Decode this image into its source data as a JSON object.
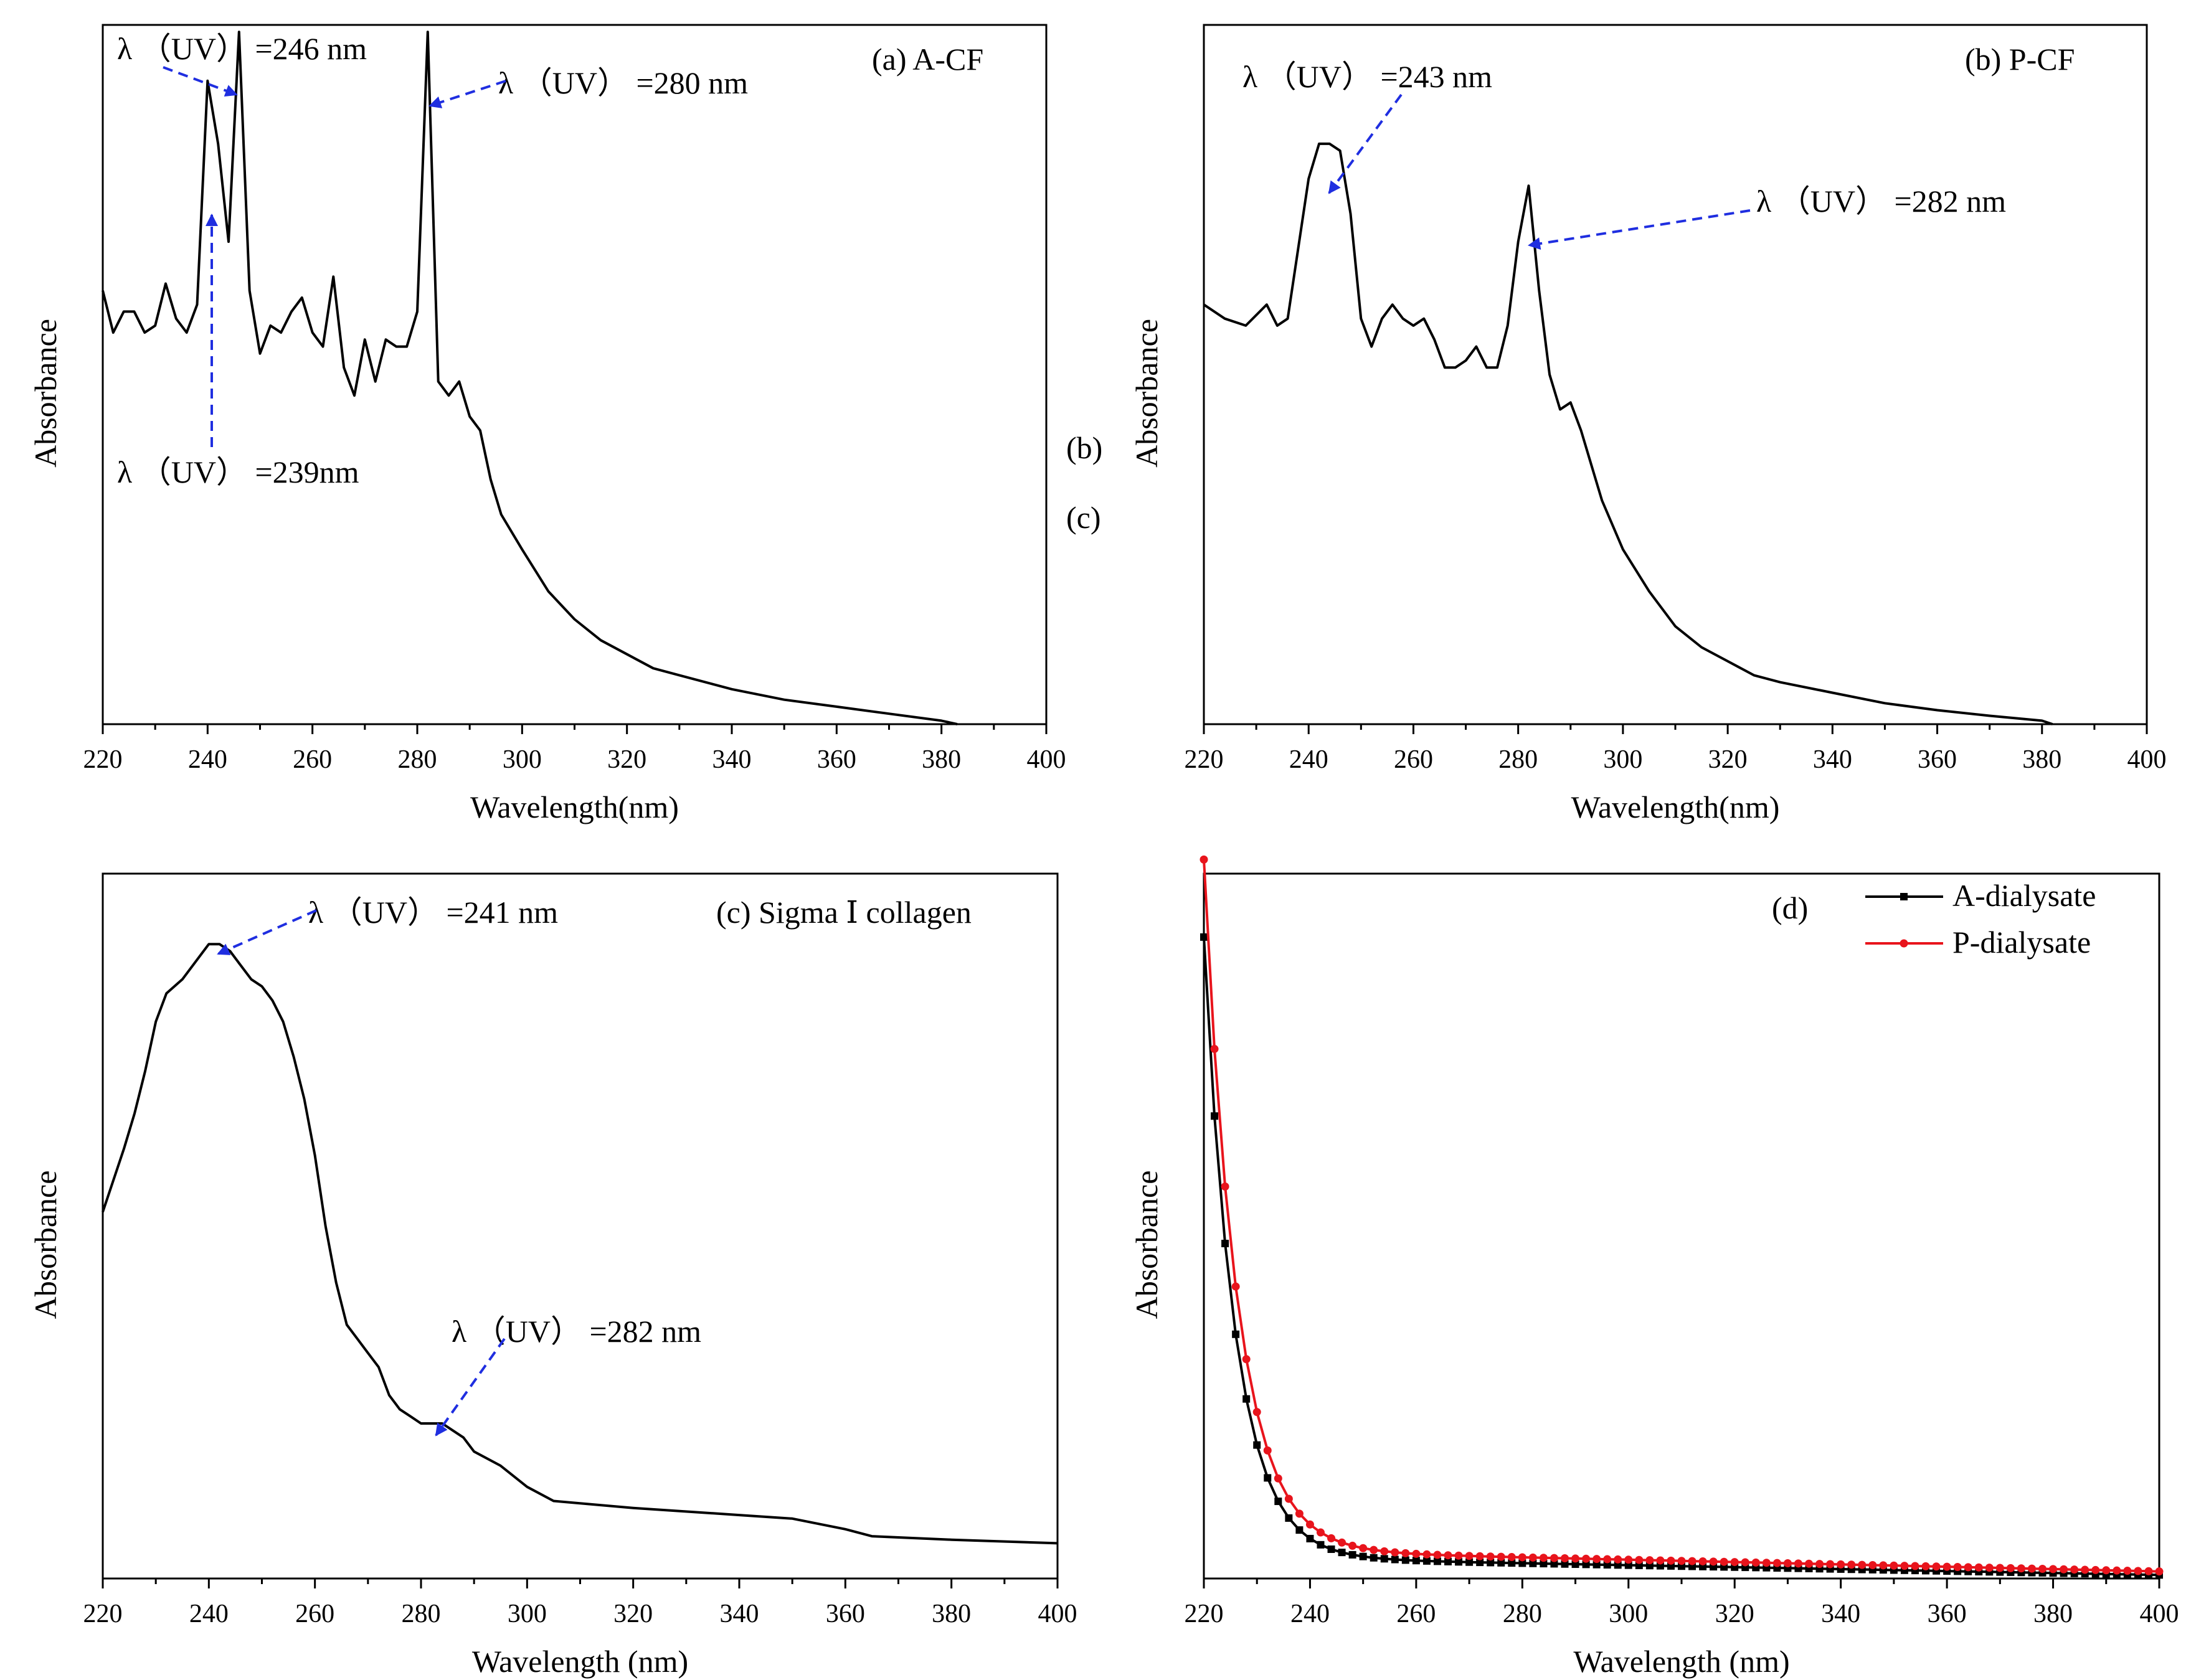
{
  "figure_stray_labels": [
    "(b)",
    "(c)"
  ],
  "chart_data": [
    {
      "type": "line",
      "panel": "a",
      "panel_label": "(a)   A-CF",
      "xlabel": "Wavelength(nm)",
      "ylabel": "Absorbance",
      "xlim": [
        220,
        400
      ],
      "ylim": [
        0,
        1
      ],
      "xticks": [
        220,
        240,
        260,
        280,
        300,
        320,
        340,
        360,
        380,
        400
      ],
      "grid": false,
      "series": [
        {
          "name": "A-CF",
          "color": "#000000",
          "x": [
            220,
            222,
            224,
            226,
            228,
            230,
            232,
            234,
            236,
            238,
            240,
            242,
            244,
            246,
            248,
            250,
            252,
            254,
            256,
            258,
            260,
            262,
            264,
            266,
            268,
            270,
            272,
            274,
            276,
            278,
            280,
            282,
            284,
            286,
            288,
            290,
            292,
            294,
            296,
            300,
            305,
            310,
            315,
            320,
            325,
            330,
            340,
            350,
            360,
            370,
            380,
            383
          ],
          "values": [
            0.62,
            0.56,
            0.59,
            0.59,
            0.56,
            0.57,
            0.63,
            0.58,
            0.56,
            0.6,
            0.92,
            0.83,
            0.69,
            0.99,
            0.62,
            0.53,
            0.57,
            0.56,
            0.59,
            0.61,
            0.56,
            0.54,
            0.64,
            0.51,
            0.47,
            0.55,
            0.49,
            0.55,
            0.54,
            0.54,
            0.59,
            0.99,
            0.49,
            0.47,
            0.49,
            0.44,
            0.42,
            0.35,
            0.3,
            0.25,
            0.19,
            0.15,
            0.12,
            0.1,
            0.08,
            0.07,
            0.05,
            0.035,
            0.025,
            0.015,
            0.005,
            0.0
          ]
        }
      ],
      "annotations": [
        {
          "text": "λ （UV） =246 nm",
          "x": 246
        },
        {
          "text": "λ （UV） =280 nm",
          "x": 282
        },
        {
          "text": "λ （UV） =239nm",
          "x": 241
        }
      ]
    },
    {
      "type": "line",
      "panel": "b",
      "panel_label": "(b)   P-CF",
      "xlabel": "Wavelength(nm)",
      "ylabel": "Absorbance",
      "xlim": [
        220,
        400
      ],
      "ylim": [
        0,
        1
      ],
      "xticks": [
        220,
        240,
        260,
        280,
        300,
        320,
        340,
        360,
        380,
        400
      ],
      "grid": false,
      "series": [
        {
          "name": "P-CF",
          "color": "#000000",
          "x": [
            220,
            224,
            228,
            232,
            234,
            236,
            238,
            240,
            242,
            244,
            246,
            248,
            250,
            252,
            254,
            256,
            258,
            260,
            262,
            264,
            266,
            268,
            270,
            272,
            274,
            276,
            278,
            280,
            282,
            284,
            286,
            288,
            290,
            292,
            294,
            296,
            300,
            305,
            310,
            315,
            320,
            325,
            330,
            340,
            350,
            360,
            370,
            380,
            382
          ],
          "values": [
            0.6,
            0.58,
            0.57,
            0.6,
            0.57,
            0.58,
            0.68,
            0.78,
            0.83,
            0.83,
            0.82,
            0.73,
            0.58,
            0.54,
            0.58,
            0.6,
            0.58,
            0.57,
            0.58,
            0.55,
            0.51,
            0.51,
            0.52,
            0.54,
            0.51,
            0.51,
            0.57,
            0.69,
            0.77,
            0.62,
            0.5,
            0.45,
            0.46,
            0.42,
            0.37,
            0.32,
            0.25,
            0.19,
            0.14,
            0.11,
            0.09,
            0.07,
            0.06,
            0.045,
            0.03,
            0.02,
            0.012,
            0.005,
            0.0
          ]
        }
      ],
      "annotations": [
        {
          "text": "λ （UV） =243 nm",
          "x": 243
        },
        {
          "text": "λ （UV） =282 nm",
          "x": 282
        }
      ]
    },
    {
      "type": "line",
      "panel": "c",
      "panel_label": "(c)   Sigma Ⅰ collagen",
      "xlabel": "Wavelength (nm)",
      "ylabel": "Absorbance",
      "xlim": [
        220,
        400
      ],
      "ylim": [
        0,
        1
      ],
      "xticks": [
        220,
        240,
        260,
        280,
        300,
        320,
        340,
        360,
        380,
        400
      ],
      "grid": false,
      "series": [
        {
          "name": "Sigma I collagen",
          "color": "#000000",
          "x": [
            220,
            224,
            226,
            228,
            230,
            232,
            235,
            238,
            240,
            242,
            244,
            246,
            248,
            250,
            252,
            254,
            256,
            258,
            260,
            262,
            264,
            266,
            268,
            270,
            272,
            274,
            276,
            278,
            280,
            282,
            284,
            286,
            288,
            290,
            295,
            300,
            305,
            320,
            340,
            350,
            360,
            365,
            380,
            400
          ],
          "values": [
            0.52,
            0.61,
            0.66,
            0.72,
            0.79,
            0.83,
            0.85,
            0.88,
            0.9,
            0.9,
            0.89,
            0.87,
            0.85,
            0.84,
            0.82,
            0.79,
            0.74,
            0.68,
            0.6,
            0.5,
            0.42,
            0.36,
            0.34,
            0.32,
            0.3,
            0.26,
            0.24,
            0.23,
            0.22,
            0.22,
            0.22,
            0.21,
            0.2,
            0.18,
            0.16,
            0.13,
            0.11,
            0.1,
            0.09,
            0.085,
            0.07,
            0.06,
            0.055,
            0.05
          ]
        }
      ],
      "annotations": [
        {
          "text": "λ （UV） =241 nm",
          "x": 241
        },
        {
          "text": "λ （UV） =282 nm",
          "x": 282
        }
      ]
    },
    {
      "type": "line",
      "panel": "d",
      "panel_label": "(d)",
      "xlabel": "Wavelength (nm)",
      "ylabel": "Absorbance",
      "xlim": [
        220,
        400
      ],
      "ylim": [
        0,
        1
      ],
      "xticks": [
        220,
        240,
        260,
        280,
        300,
        320,
        340,
        360,
        380,
        400
      ],
      "grid": false,
      "legend_position": "top-right",
      "series": [
        {
          "name": "A-dialysate",
          "color": "#000000",
          "marker": "square",
          "decay_amplitude": 0.88,
          "decay_rate": 0.17,
          "baseline_start": 0.03,
          "baseline_end": 0.005
        },
        {
          "name": "P-dialysate",
          "color": "#e8141c",
          "marker": "circle",
          "decay_amplitude": 0.98,
          "decay_rate": 0.16,
          "baseline_start": 0.04,
          "baseline_end": 0.01
        }
      ]
    }
  ]
}
